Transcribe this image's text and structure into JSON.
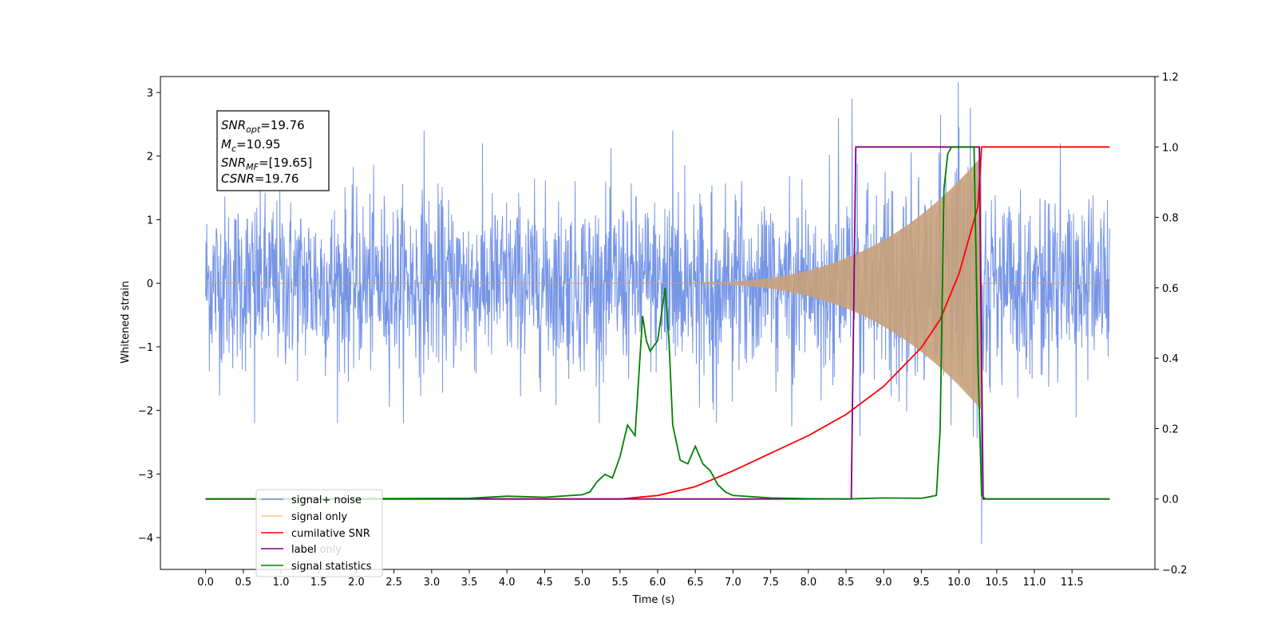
{
  "chart_data": {
    "type": "line",
    "title": "",
    "xlabel": "Time (s)",
    "ylabel": "Whitened strain",
    "y2label": "",
    "xlim": [
      -0.6,
      12.6
    ],
    "ylim": [
      -4.5,
      3.25
    ],
    "y2lim": [
      -0.2,
      1.2
    ],
    "xticks": [
      "0.0",
      "0.5",
      "1.0",
      "1.5",
      "2.0",
      "2.5",
      "3.0",
      "3.5",
      "4.0",
      "4.5",
      "5.0",
      "5.5",
      "6.0",
      "6.5",
      "7.0",
      "7.5",
      "8.0",
      "8.5",
      "9.0",
      "9.5",
      "10.0",
      "10.5",
      "11.0",
      "11.5"
    ],
    "yticks": [
      "3",
      "2",
      "1",
      "0",
      "−1",
      "−2",
      "−3",
      "−4"
    ],
    "y2ticks": [
      "1.2",
      "1.0",
      "0.8",
      "0.6",
      "0.4",
      "0.2",
      "0.0",
      "−0.2"
    ],
    "grid": false,
    "legend_position": "lower-left",
    "annotation": {
      "lines": [
        {
          "base": "SNR",
          "sub": "opt",
          "value": "=19.76"
        },
        {
          "base": "M",
          "sub": "c",
          "value": "=10.95"
        },
        {
          "base": "SNR",
          "sub": "MF",
          "value": "=[19.65]"
        },
        {
          "base": "CSNR",
          "sub": "",
          "value": "=19.76"
        }
      ]
    },
    "series": [
      {
        "name": "signal+ noise",
        "axis": "left",
        "color": "#6f8fe6",
        "kind": "noise",
        "x_range": [
          0.0,
          12.0
        ],
        "amplitude_typical": 1.4,
        "extremes": [
          {
            "x": 8.58,
            "y": 2.9
          },
          {
            "x": 10.3,
            "y": -4.1
          },
          {
            "x": 0.65,
            "y": -2.2
          },
          {
            "x": 6.2,
            "y": 2.4
          },
          {
            "x": 2.9,
            "y": 2.4
          },
          {
            "x": 8.4,
            "y": 2.6
          },
          {
            "x": 10.0,
            "y": 2.45
          }
        ]
      },
      {
        "name": "signal only",
        "axis": "left",
        "color": "#c8a17a",
        "kind": "chirp",
        "start": 6.0,
        "end": 10.3,
        "peak_amplitude": 2.0
      },
      {
        "name": "cumilative SNR",
        "axis": "right",
        "color": "#ff0000",
        "x": [
          0.0,
          5.5,
          6.0,
          6.5,
          7.0,
          7.5,
          8.0,
          8.5,
          9.0,
          9.5,
          9.75,
          10.0,
          10.25,
          10.3,
          12.0
        ],
        "y": [
          0.0,
          0.0,
          0.01,
          0.035,
          0.08,
          0.13,
          0.18,
          0.24,
          0.32,
          0.43,
          0.51,
          0.64,
          0.83,
          1.0,
          1.0
        ]
      },
      {
        "name": "label",
        "axis": "right",
        "color": "#800080",
        "x": [
          0.0,
          8.57,
          8.63,
          10.27,
          10.32,
          12.0
        ],
        "y": [
          0.0,
          0.0,
          1.0,
          1.0,
          0.0,
          0.0
        ]
      },
      {
        "name": "signal statistics",
        "axis": "right",
        "color": "#008000",
        "x": [
          0.0,
          3.5,
          4.0,
          4.5,
          5.0,
          5.1,
          5.2,
          5.3,
          5.4,
          5.5,
          5.6,
          5.7,
          5.8,
          5.85,
          5.9,
          6.0,
          6.1,
          6.15,
          6.2,
          6.3,
          6.4,
          6.5,
          6.6,
          6.7,
          6.8,
          6.9,
          7.0,
          7.5,
          8.0,
          8.5,
          9.0,
          9.5,
          9.7,
          9.75,
          9.8,
          9.85,
          9.9,
          10.0,
          10.1,
          10.2,
          10.25,
          10.3,
          10.35,
          12.0
        ],
        "y": [
          0.0,
          0.002,
          0.008,
          0.005,
          0.012,
          0.02,
          0.05,
          0.07,
          0.06,
          0.12,
          0.21,
          0.18,
          0.52,
          0.45,
          0.42,
          0.45,
          0.6,
          0.45,
          0.21,
          0.11,
          0.1,
          0.15,
          0.1,
          0.08,
          0.04,
          0.02,
          0.01,
          0.003,
          0.001,
          0.0,
          0.003,
          0.002,
          0.01,
          0.2,
          0.88,
          0.98,
          1.0,
          1.0,
          1.0,
          1.0,
          0.4,
          0.01,
          0.0,
          0.0
        ]
      }
    ],
    "legend": [
      "signal+ noise",
      "signal only",
      "cumilative SNR",
      "label",
      "signal statistics"
    ],
    "legend_ghost": [
      "label only"
    ]
  }
}
